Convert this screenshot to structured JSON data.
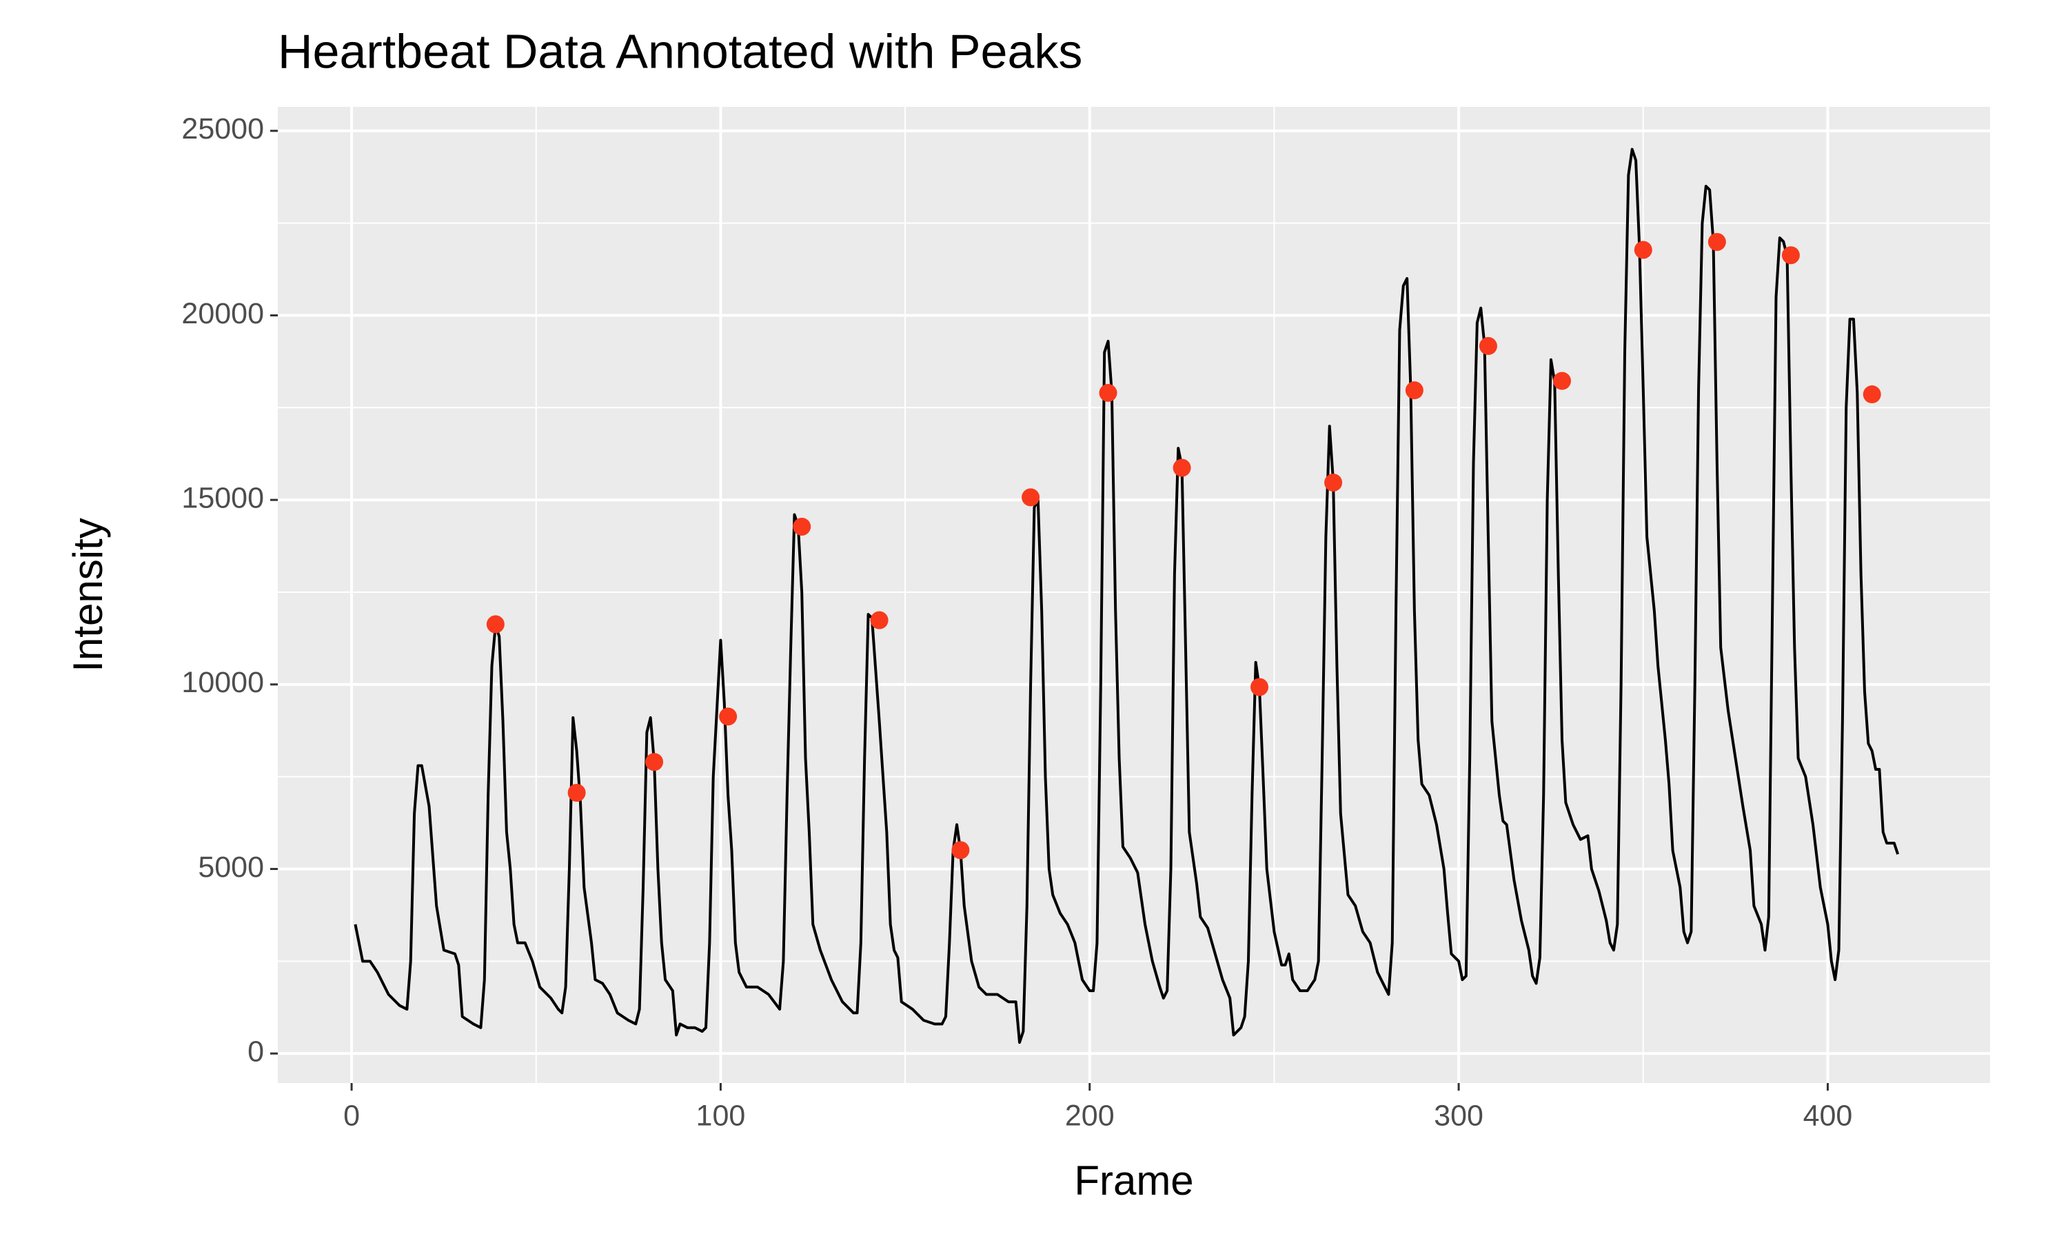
{
  "chart_data": {
    "type": "line",
    "title": "Heartbeat Data Annotated with Peaks",
    "x_label": "Frame",
    "y_label": "Intensity",
    "xlim": [
      -20,
      444
    ],
    "ylim": [
      -800,
      25650
    ],
    "xticks": [
      0,
      100,
      200,
      300,
      400
    ],
    "yticks": [
      0,
      5000,
      10000,
      15000,
      20000,
      25000
    ],
    "xminorticks": [
      50,
      150,
      250,
      350
    ],
    "yminorticks": [
      2500,
      7500,
      12500,
      17500,
      22500
    ],
    "grid": true,
    "series": [
      {
        "type": "line",
        "color": "#000000",
        "x": [
          1,
          3,
          5,
          7,
          10,
          13,
          15,
          16,
          17,
          18,
          19,
          21,
          23,
          25,
          28,
          29,
          30,
          33,
          35,
          36,
          37,
          38,
          39,
          40,
          41,
          42,
          43,
          44,
          45,
          47,
          49,
          51,
          54,
          56,
          57,
          58,
          59,
          60,
          61,
          62,
          63,
          65,
          66,
          68,
          70,
          72,
          75,
          77,
          78,
          79,
          80,
          81,
          82,
          83,
          84,
          85,
          87,
          88,
          89,
          91,
          93,
          95,
          96,
          97,
          98,
          100,
          101,
          102,
          103,
          104,
          105,
          107,
          110,
          113,
          116,
          117,
          118,
          119,
          120,
          121,
          122,
          123,
          124,
          125,
          127,
          130,
          133,
          136,
          137,
          138,
          139,
          140,
          141,
          143,
          145,
          146,
          147,
          148,
          149,
          152,
          155,
          158,
          160,
          161,
          162,
          163,
          164,
          165,
          166,
          168,
          170,
          172,
          175,
          178,
          180,
          181,
          182,
          183,
          184,
          185,
          186,
          187,
          188,
          189,
          190,
          192,
          194,
          196,
          198,
          200,
          201,
          202,
          203,
          204,
          205,
          206,
          207,
          208,
          209,
          211,
          213,
          215,
          217,
          219,
          220,
          221,
          222,
          223,
          224,
          225,
          226,
          227,
          229,
          230,
          232,
          234,
          236,
          238,
          239,
          241,
          242,
          243,
          244,
          245,
          246,
          247,
          248,
          250,
          252,
          253,
          254,
          255,
          257,
          259,
          261,
          262,
          263,
          264,
          265,
          266,
          267,
          268,
          270,
          272,
          274,
          276,
          278,
          280,
          281,
          282,
          283,
          284,
          285,
          286,
          287,
          288,
          289,
          290,
          292,
          294,
          296,
          297,
          298,
          300,
          301,
          302,
          303,
          304,
          305,
          306,
          307,
          308,
          309,
          311,
          312,
          313,
          315,
          317,
          319,
          320,
          321,
          322,
          323,
          324,
          325,
          326,
          327,
          328,
          329,
          331,
          333,
          335,
          336,
          338,
          340,
          341,
          342,
          343,
          344,
          345,
          346,
          347,
          348,
          349,
          350,
          351,
          353,
          354,
          356,
          357,
          358,
          360,
          361,
          362,
          363,
          364,
          365,
          366,
          367,
          368,
          369,
          370,
          371,
          373,
          375,
          377,
          379,
          380,
          382,
          383,
          384,
          385,
          386,
          387,
          388,
          389,
          390,
          391,
          392,
          394,
          396,
          398,
          400,
          401,
          402,
          403,
          404,
          405,
          406,
          407,
          408,
          409,
          410,
          411,
          412,
          413,
          414,
          415,
          416,
          418,
          419
        ],
        "values": [
          3500,
          2500,
          2500,
          2200,
          1600,
          1300,
          1200,
          2500,
          6500,
          7800,
          7800,
          6700,
          4000,
          2800,
          2700,
          2400,
          1000,
          800,
          700,
          2000,
          7000,
          10500,
          11600,
          11300,
          9000,
          6000,
          5000,
          3500,
          3000,
          3000,
          2500,
          1800,
          1500,
          1200,
          1100,
          1800,
          5000,
          9100,
          8200,
          6800,
          4500,
          3000,
          2000,
          1900,
          1600,
          1100,
          900,
          800,
          1200,
          4500,
          8700,
          9100,
          7900,
          5000,
          3000,
          2000,
          1700,
          500,
          800,
          700,
          700,
          600,
          700,
          3000,
          7500,
          11200,
          9500,
          7000,
          5500,
          3000,
          2200,
          1800,
          1800,
          1600,
          1200,
          2500,
          7000,
          11000,
          14600,
          14300,
          12500,
          8000,
          6000,
          3500,
          2800,
          2000,
          1400,
          1100,
          1100,
          3000,
          8000,
          11900,
          11800,
          9000,
          6000,
          3500,
          2800,
          2600,
          1400,
          1200,
          900,
          800,
          800,
          1000,
          3000,
          5500,
          6200,
          5500,
          4000,
          2500,
          1800,
          1600,
          1600,
          1400,
          1400,
          300,
          600,
          4000,
          10000,
          14800,
          15000,
          12000,
          7500,
          5000,
          4300,
          3800,
          3500,
          3000,
          2000,
          1700,
          1700,
          3000,
          10000,
          19000,
          19300,
          17900,
          12000,
          8000,
          5600,
          5300,
          4900,
          3500,
          2500,
          1800,
          1500,
          1700,
          5000,
          13000,
          16400,
          15900,
          11000,
          6000,
          4600,
          3700,
          3400,
          2700,
          2000,
          1500,
          500,
          700,
          1000,
          2500,
          7000,
          10600,
          9900,
          7500,
          5000,
          3300,
          2400,
          2400,
          2700,
          2000,
          1700,
          1700,
          2000,
          2500,
          8000,
          14000,
          17000,
          15500,
          10500,
          6500,
          4300,
          4000,
          3300,
          3000,
          2200,
          1800,
          1600,
          3000,
          12000,
          19600,
          20800,
          21000,
          18000,
          12000,
          8500,
          7300,
          7000,
          6200,
          5000,
          3800,
          2700,
          2500,
          2000,
          2100,
          8000,
          16000,
          19800,
          20200,
          19200,
          14000,
          9000,
          7000,
          6300,
          6200,
          4700,
          3600,
          2800,
          2100,
          1900,
          2600,
          7000,
          15000,
          18800,
          18200,
          13000,
          8500,
          6800,
          6200,
          5800,
          5900,
          5000,
          4400,
          3600,
          3000,
          2800,
          3500,
          10000,
          19000,
          23800,
          24500,
          24200,
          21800,
          18000,
          14000,
          12000,
          10500,
          8500,
          7300,
          5500,
          4500,
          3300,
          3000,
          3300,
          10000,
          18000,
          22500,
          23500,
          23400,
          22000,
          16000,
          11000,
          9300,
          8000,
          6700,
          5500,
          4000,
          3500,
          2800,
          3700,
          12000,
          20500,
          22100,
          22000,
          21600,
          16000,
          11000,
          8000,
          7500,
          6200,
          4500,
          3500,
          2500,
          2000,
          2800,
          9000,
          17500,
          19900,
          19900,
          17900,
          13000,
          9800,
          8400,
          8200,
          7700,
          7700,
          6000,
          5700,
          5700,
          5400
        ]
      },
      {
        "type": "scatter",
        "color": "#f8391c",
        "x": [
          39,
          61,
          82,
          102,
          122,
          143,
          165,
          184,
          205,
          225,
          246,
          266,
          288,
          308,
          328,
          350,
          370,
          390,
          412
        ],
        "values": [
          11630,
          7065,
          7900,
          9130,
          14275,
          11740,
          5510,
          15070,
          17900,
          15870,
          9930,
          15470,
          17970,
          19170,
          18225,
          21775,
          21990,
          21630,
          17860
        ]
      }
    ]
  }
}
